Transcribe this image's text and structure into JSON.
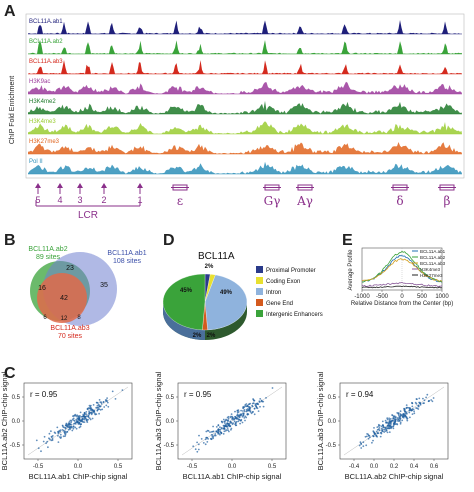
{
  "panels": {
    "A": "A",
    "B": "B",
    "C": "C",
    "D": "D",
    "E": "E"
  },
  "panelA": {
    "ylabel": "ChIP Fold Enrichment",
    "tracks": [
      {
        "label": "BCL11A.ab1",
        "color": "#1f1f7a"
      },
      {
        "label": "BCL11A.ab2",
        "color": "#3aa33a"
      },
      {
        "label": "BCL11A.ab3",
        "color": "#d42a1e"
      },
      {
        "label": "H3K9ac",
        "color": "#9b3a9b"
      },
      {
        "label": "H3K4me2",
        "color": "#1e7a2a"
      },
      {
        "label": "H3K4me3",
        "color": "#9acd32"
      },
      {
        "label": "H3K27me3",
        "color": "#e0641e"
      },
      {
        "label": "Pol II",
        "color": "#2e8fb8"
      }
    ],
    "lcr_sites": [
      "5",
      "4",
      "3",
      "2",
      "1"
    ],
    "lcr_label": "LCR",
    "genes": [
      "ε",
      "Gγ",
      "Aγ",
      "δ",
      "β"
    ],
    "gene_color": "#8a2f8a"
  },
  "panelB": {
    "sets": [
      {
        "name": "BCL11A.ab2",
        "count": "89 sites",
        "color": "#3aa33a"
      },
      {
        "name": "BCL11A.ab1",
        "count": "108 sites",
        "color": "#3b4fa8"
      },
      {
        "name": "BCL11A.ab3",
        "count": "70 sites",
        "color": "#d42a1e"
      }
    ],
    "regions": [
      "23",
      "16",
      "35",
      "42",
      "6",
      "12",
      "8"
    ]
  },
  "panelC": {
    "plots": [
      {
        "r": "r = 0.95",
        "xlabel": "BCL11A.ab1 ChIP-chip signal",
        "ylabel": "BCL11A.ab2 ChIP-chip signal",
        "xticks": [
          "-0.5",
          "0.0",
          "0.5"
        ],
        "yticks": [
          "0.5",
          "0.0",
          "-0.5"
        ]
      },
      {
        "r": "r = 0.95",
        "xlabel": "BCL11A.ab1 ChIP-chip signal",
        "ylabel": "BCL11A.ab3 ChIP-chip signal",
        "xticks": [
          "-0.5",
          "0.0",
          "0.5"
        ],
        "yticks": [
          "0.5",
          "0.0",
          "-0.5"
        ]
      },
      {
        "r": "r = 0.94",
        "xlabel": "BCL11A.ab2 ChIP-chip signal",
        "ylabel": "BCL11A.ab3 ChIP-chip signal",
        "xticks": [
          "-0.4",
          "0.0",
          "0.2",
          "0.4",
          "0.6"
        ],
        "yticks": [
          "0.5",
          "0.0",
          "-0.5"
        ]
      }
    ]
  },
  "panelD": {
    "title": "BCL11A",
    "slices": [
      {
        "label": "Proximal Promoter",
        "value": 2,
        "text": "2%",
        "color": "#2a3a8a"
      },
      {
        "label": "Coding Exon",
        "value": 2,
        "text": "2%",
        "color": "#e8e030"
      },
      {
        "label": "Intron",
        "value": 45,
        "text": "45%",
        "color": "#8fb3dd"
      },
      {
        "label": "Gene End",
        "value": 2,
        "text": "2%",
        "color": "#d45a1e"
      },
      {
        "label": "Intergenic Enhancers",
        "value": 49,
        "text": "49%",
        "color": "#3aa33a"
      }
    ]
  },
  "panelE": {
    "ylabel": "Average Profile",
    "xlabel": "Relative Distance from the Center (bp)",
    "xticks": [
      "-1000",
      "-500",
      "0",
      "500",
      "1000"
    ],
    "legend": [
      {
        "label": "BCL11A.ab1",
        "color": "#1f6fb0"
      },
      {
        "label": "BCL11A.ab2",
        "color": "#3aa33a"
      },
      {
        "label": "BCL11A.ab3",
        "color": "#d4a020"
      },
      {
        "label": "H3K4me3",
        "color": "#8a5a9a"
      },
      {
        "label": "H3K27me3",
        "color": "#222222"
      }
    ]
  }
}
